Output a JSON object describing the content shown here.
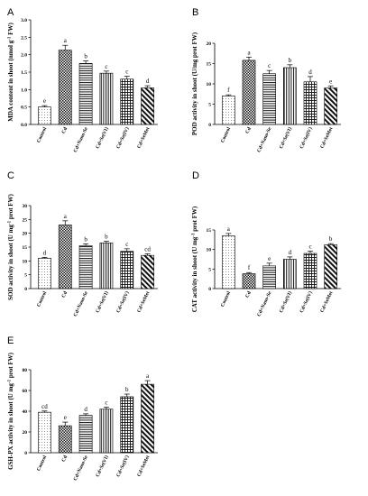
{
  "chart_data": [
    {
      "panel": "A",
      "type": "bar",
      "categories": [
        "Control",
        "Cd",
        "Cd+Nano-Se",
        "Cd+Se(VI)",
        "Cd+Se(IV)",
        "Cd+SeMet"
      ],
      "values": [
        0.5,
        2.13,
        1.75,
        1.47,
        1.3,
        1.05
      ],
      "errors": [
        0.04,
        0.14,
        0.07,
        0.06,
        0.08,
        0.06
      ],
      "significance": [
        "e",
        "a",
        "b",
        "c",
        "c",
        "d"
      ],
      "ylabel_pre": "MDA content in shoot (nmol g",
      "ylabel_sup": "-1",
      "ylabel_post": " FW)",
      "ylim": [
        0,
        3.0
      ],
      "yticks": [
        "0.0",
        "0.5",
        "1.0",
        "1.5",
        "2.0",
        "2.5",
        "3.0"
      ]
    },
    {
      "panel": "B",
      "type": "bar",
      "categories": [
        "Control",
        "Cd",
        "Cd+Nano-Se",
        "Cd+Se(VI)",
        "Cd+Se(IV)",
        "Cd+SeMet"
      ],
      "values": [
        7,
        15.8,
        12.5,
        14,
        10.5,
        9
      ],
      "errors": [
        0.3,
        0.8,
        0.8,
        0.7,
        1.3,
        0.5
      ],
      "significance": [
        "f",
        "a",
        "c",
        "b",
        "d",
        "e"
      ],
      "ylabel_pre": "POD activity in shoot (U/mg prot FW)",
      "ylabel_sup": "",
      "ylabel_post": "",
      "ylim": [
        0,
        20
      ],
      "yticks": [
        "0",
        "5",
        "10",
        "15",
        "20"
      ]
    },
    {
      "panel": "C",
      "type": "bar",
      "categories": [
        "Control",
        "Cd",
        "Cd+Nano-Se",
        "Cd+Se(VI)",
        "Cd+Se(IV)",
        "Cd+SeMet"
      ],
      "values": [
        11,
        23,
        15.5,
        16.5,
        13.5,
        12
      ],
      "errors": [
        0.3,
        1.5,
        0.7,
        0.6,
        0.9,
        0.6
      ],
      "significance": [
        "d",
        "a",
        "b",
        "b",
        "c",
        "cd"
      ],
      "ylabel_pre": "SOD activity in shoot (U mg",
      "ylabel_sup": "-1",
      "ylabel_post": " prot FW)",
      "ylim": [
        0,
        30
      ],
      "yticks": [
        "0",
        "5",
        "10",
        "15",
        "20",
        "25",
        "30"
      ]
    },
    {
      "panel": "D",
      "type": "bar",
      "categories": [
        "Control",
        "Cd",
        "Cd+Nano-Se",
        "Cd+Se(VI)",
        "Cd+Se(IV)",
        "Cd+SeMet"
      ],
      "values": [
        13.5,
        3.8,
        5.8,
        7.5,
        9,
        11.2
      ],
      "errors": [
        0.6,
        0.3,
        0.7,
        0.6,
        0.6,
        0.3
      ],
      "significance": [
        "a",
        "f",
        "e",
        "d",
        "c",
        "b"
      ],
      "ylabel_pre": "CAT activity in shoot (U mg",
      "ylabel_sup": "-1",
      "ylabel_post": " prot FW)",
      "ylim": [
        0,
        15
      ],
      "yticks": [
        "0",
        "5",
        "10",
        "15"
      ]
    },
    {
      "panel": "E",
      "type": "bar",
      "categories": [
        "Control",
        "Cd",
        "Cd+Nano-Se",
        "Cd+Se(VI)",
        "Cd+Se(IV)",
        "Cd+SeMet"
      ],
      "values": [
        39,
        26,
        36,
        42,
        54,
        66
      ],
      "errors": [
        1.2,
        3.5,
        1.5,
        2.0,
        2.5,
        3.5
      ],
      "significance": [
        "cd",
        "e",
        "d",
        "c",
        "b",
        "a"
      ],
      "ylabel_pre": "GSH-PX activity in shoot (U mg",
      "ylabel_sup": "-1",
      "ylabel_post": " prot FW)",
      "ylim": [
        0,
        80
      ],
      "yticks": [
        "0",
        "20",
        "40",
        "60",
        "80"
      ]
    }
  ]
}
